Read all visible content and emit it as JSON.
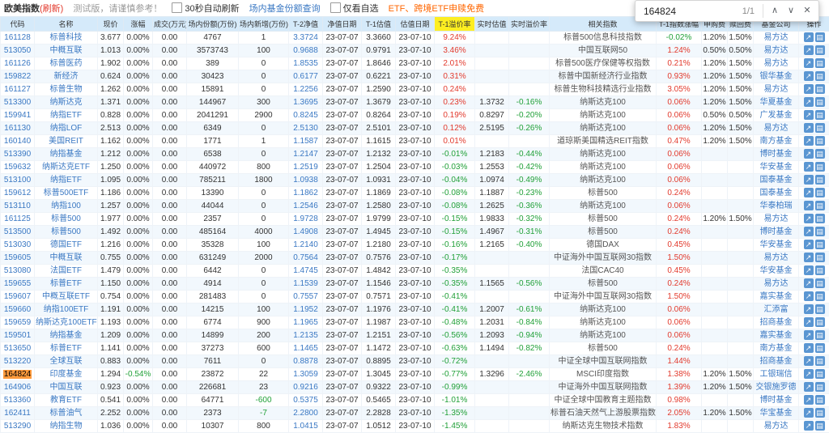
{
  "toolbar": {
    "title": "欧美指数",
    "refresh": "(刷新)",
    "notice": "测试版，请谨慎参考！",
    "auto_refresh_label": "30秒自动刷新",
    "share_query_link": "场内基金份额查询",
    "only_fav_label": "仅看自选",
    "promo": "ETF、跨境ETF申赎免费"
  },
  "find_bar": {
    "query": "164824",
    "matches": "1/1"
  },
  "icons": {
    "find_previous": "∧",
    "find_next": "∨",
    "find_close": "✕",
    "op_minute_chart": "↗",
    "op_kline_chart": "▤"
  },
  "colors": {
    "accent_blue": "#3a78c3",
    "positive_red": "#e23a2d",
    "negative_green": "#21a038",
    "header_bg": "#d5eafa",
    "premium_header_yellow": "#fdee21",
    "find_match_orange": "#ff9a3c"
  },
  "table": {
    "columns": [
      {
        "key": "code",
        "label": "代码",
        "cls": "link"
      },
      {
        "key": "name",
        "label": "名称",
        "cls": "link"
      },
      {
        "key": "price",
        "label": "现价",
        "cls": ""
      },
      {
        "key": "chg",
        "label": "涨幅",
        "cls": "sign"
      },
      {
        "key": "vol",
        "label": "成交(万元)",
        "cls": ""
      },
      {
        "key": "shares",
        "label": "场内份额(万份)",
        "cls": ""
      },
      {
        "key": "new",
        "label": "场内新增(万份)",
        "cls": "signplain"
      },
      {
        "key": "nav2",
        "label": "T-2净值",
        "cls": "link"
      },
      {
        "key": "nav_date",
        "label": "净值日期",
        "cls": ""
      },
      {
        "key": "est1",
        "label": "T-1估值",
        "cls": ""
      },
      {
        "key": "est_date",
        "label": "估值日期",
        "cls": ""
      },
      {
        "key": "prem1",
        "label": "T-1溢价率",
        "cls": "sign",
        "hl": true
      },
      {
        "key": "rt_est",
        "label": "实时估值",
        "cls": ""
      },
      {
        "key": "rt_prem",
        "label": "实时溢价率",
        "cls": "sign"
      },
      {
        "key": "index",
        "label": "相关指数",
        "cls": "idx"
      },
      {
        "key": "idx_chg",
        "label": "T-1指数涨幅",
        "cls": "sign"
      },
      {
        "key": "fee_buy",
        "label": "申购费",
        "cls": ""
      },
      {
        "key": "fee_sell",
        "label": "赎回费",
        "cls": ""
      },
      {
        "key": "company",
        "label": "基金公司",
        "cls": "link"
      },
      {
        "key": "ops",
        "label": "操作",
        "cls": "ops"
      }
    ],
    "rows": [
      [
        "161128",
        "标普科技",
        "3.677",
        "0.00%",
        "0.00",
        "4767",
        "1",
        "3.3724",
        "23-07-07",
        "3.3660",
        "23-07-10",
        "9.24%",
        "",
        "",
        "标普500信息科技指数",
        "-0.02%",
        "1.20%",
        "1.50%",
        "易方达"
      ],
      [
        "513050",
        "中概互联",
        "1.013",
        "0.00%",
        "0.00",
        "3573743",
        "100",
        "0.9688",
        "23-07-07",
        "0.9791",
        "23-07-10",
        "3.46%",
        "",
        "",
        "中国互联网50",
        "1.24%",
        "0.50%",
        "0.50%",
        "易方达"
      ],
      [
        "161126",
        "标普医药",
        "1.902",
        "0.00%",
        "0.00",
        "389",
        "0",
        "1.8535",
        "23-07-07",
        "1.8646",
        "23-07-10",
        "2.01%",
        "",
        "",
        "标普500医疗保健等权指数",
        "0.21%",
        "1.20%",
        "1.50%",
        "易方达"
      ],
      [
        "159822",
        "新经济",
        "0.624",
        "0.00%",
        "0.00",
        "30423",
        "0",
        "0.6177",
        "23-07-07",
        "0.6221",
        "23-07-10",
        "0.31%",
        "",
        "",
        "标普中国新经济行业指数",
        "0.93%",
        "1.20%",
        "1.50%",
        "银华基金"
      ],
      [
        "161127",
        "标普生物",
        "1.262",
        "0.00%",
        "0.00",
        "15891",
        "0",
        "1.2256",
        "23-07-07",
        "1.2590",
        "23-07-10",
        "0.24%",
        "",
        "",
        "标普生物科技精选行业指数",
        "3.05%",
        "1.20%",
        "1.50%",
        "易方达"
      ],
      [
        "513300",
        "纳斯达克",
        "1.371",
        "0.00%",
        "0.00",
        "144967",
        "300",
        "1.3695",
        "23-07-07",
        "1.3679",
        "23-07-10",
        "0.23%",
        "1.3732",
        "-0.16%",
        "纳斯达克100",
        "0.06%",
        "1.20%",
        "1.50%",
        "华夏基金"
      ],
      [
        "159941",
        "纳指ETF",
        "0.828",
        "0.00%",
        "0.00",
        "2041291",
        "2900",
        "0.8245",
        "23-07-07",
        "0.8264",
        "23-07-10",
        "0.19%",
        "0.8297",
        "-0.20%",
        "纳斯达克100",
        "0.06%",
        "0.50%",
        "0.50%",
        "广发基金"
      ],
      [
        "161130",
        "纳指LOF",
        "2.513",
        "0.00%",
        "0.00",
        "6349",
        "0",
        "2.5130",
        "23-07-07",
        "2.5101",
        "23-07-10",
        "0.12%",
        "2.5195",
        "-0.26%",
        "纳斯达克100",
        "0.06%",
        "1.20%",
        "1.50%",
        "易方达"
      ],
      [
        "160140",
        "美国REIT",
        "1.162",
        "0.00%",
        "0.00",
        "1771",
        "1",
        "1.1587",
        "23-07-07",
        "1.1615",
        "23-07-10",
        "0.01%",
        "",
        "",
        "道琼斯美国精选REIT指数",
        "0.47%",
        "1.20%",
        "1.50%",
        "南方基金"
      ],
      [
        "513390",
        "纳指基金",
        "1.212",
        "0.00%",
        "0.00",
        "6538",
        "0",
        "1.2147",
        "23-07-07",
        "1.2132",
        "23-07-10",
        "-0.01%",
        "1.2183",
        "-0.44%",
        "纳斯达克100",
        "0.06%",
        "",
        "",
        "博时基金"
      ],
      [
        "159632",
        "纳斯达克ETF",
        "1.250",
        "0.00%",
        "0.00",
        "440972",
        "800",
        "1.2519",
        "23-07-07",
        "1.2504",
        "23-07-10",
        "-0.03%",
        "1.2553",
        "-0.42%",
        "纳斯达克100",
        "0.06%",
        "",
        "",
        "华安基金"
      ],
      [
        "513100",
        "纳指ETF",
        "1.095",
        "0.00%",
        "0.00",
        "785211",
        "1800",
        "1.0938",
        "23-07-07",
        "1.0931",
        "23-07-10",
        "-0.04%",
        "1.0974",
        "-0.49%",
        "纳斯达克100",
        "0.06%",
        "",
        "",
        "国泰基金"
      ],
      [
        "159612",
        "标普500ETF",
        "1.186",
        "0.00%",
        "0.00",
        "13390",
        "0",
        "1.1862",
        "23-07-07",
        "1.1869",
        "23-07-10",
        "-0.08%",
        "1.1887",
        "-0.23%",
        "标普500",
        "0.24%",
        "",
        "",
        "国泰基金"
      ],
      [
        "513110",
        "纳指100",
        "1.257",
        "0.00%",
        "0.00",
        "44044",
        "0",
        "1.2546",
        "23-07-07",
        "1.2580",
        "23-07-10",
        "-0.08%",
        "1.2625",
        "-0.36%",
        "纳斯达克100",
        "0.06%",
        "",
        "",
        "华泰柏瑞"
      ],
      [
        "161125",
        "标普500",
        "1.977",
        "0.00%",
        "0.00",
        "2357",
        "0",
        "1.9728",
        "23-07-07",
        "1.9799",
        "23-07-10",
        "-0.15%",
        "1.9833",
        "-0.32%",
        "标普500",
        "0.24%",
        "1.20%",
        "1.50%",
        "易方达"
      ],
      [
        "513500",
        "标普500",
        "1.492",
        "0.00%",
        "0.00",
        "485164",
        "4000",
        "1.4908",
        "23-07-07",
        "1.4945",
        "23-07-10",
        "-0.15%",
        "1.4967",
        "-0.31%",
        "标普500",
        "0.24%",
        "",
        "",
        "博时基金"
      ],
      [
        "513030",
        "德国ETF",
        "1.216",
        "0.00%",
        "0.00",
        "35328",
        "100",
        "1.2140",
        "23-07-07",
        "1.2180",
        "23-07-10",
        "-0.16%",
        "1.2165",
        "-0.40%",
        "德国DAX",
        "0.45%",
        "",
        "",
        "华安基金"
      ],
      [
        "159605",
        "中概互联",
        "0.755",
        "0.00%",
        "0.00",
        "631249",
        "2000",
        "0.7564",
        "23-07-07",
        "0.7576",
        "23-07-10",
        "-0.17%",
        "",
        "",
        "中证海外中国互联网30指数",
        "1.50%",
        "",
        "",
        "易方达"
      ],
      [
        "513080",
        "法国ETF",
        "1.479",
        "0.00%",
        "0.00",
        "6442",
        "0",
        "1.4745",
        "23-07-07",
        "1.4842",
        "23-07-10",
        "-0.35%",
        "",
        "",
        "法国CAC40",
        "0.45%",
        "",
        "",
        "华安基金"
      ],
      [
        "159655",
        "标普ETF",
        "1.150",
        "0.00%",
        "0.00",
        "4914",
        "0",
        "1.1539",
        "23-07-07",
        "1.1546",
        "23-07-10",
        "-0.35%",
        "1.1565",
        "-0.56%",
        "标普500",
        "0.24%",
        "",
        "",
        "易方达"
      ],
      [
        "159607",
        "中概互联ETF",
        "0.754",
        "0.00%",
        "0.00",
        "281483",
        "0",
        "0.7557",
        "23-07-07",
        "0.7571",
        "23-07-10",
        "-0.41%",
        "",
        "",
        "中证海外中国互联网30指数",
        "1.50%",
        "",
        "",
        "嘉实基金"
      ],
      [
        "159660",
        "纳指100ETF",
        "1.191",
        "0.00%",
        "0.00",
        "14215",
        "100",
        "1.1952",
        "23-07-07",
        "1.1976",
        "23-07-10",
        "-0.41%",
        "1.2007",
        "-0.61%",
        "纳斯达克100",
        "0.06%",
        "",
        "",
        "汇添富"
      ],
      [
        "159659",
        "纳斯达克100ETF",
        "1.193",
        "0.00%",
        "0.00",
        "6774",
        "900",
        "1.1965",
        "23-07-07",
        "1.1987",
        "23-07-10",
        "-0.48%",
        "1.2031",
        "-0.84%",
        "纳斯达克100",
        "0.06%",
        "",
        "",
        "招商基金"
      ],
      [
        "159501",
        "纳指基金",
        "1.209",
        "0.00%",
        "0.00",
        "14899",
        "200",
        "1.2135",
        "23-07-07",
        "1.2151",
        "23-07-10",
        "-0.56%",
        "1.2093",
        "-0.94%",
        "纳斯达克100",
        "0.06%",
        "",
        "",
        "嘉实基金"
      ],
      [
        "513650",
        "标普ETF",
        "1.141",
        "0.00%",
        "0.00",
        "37273",
        "600",
        "1.1465",
        "23-07-07",
        "1.1472",
        "23-07-10",
        "-0.63%",
        "1.1494",
        "-0.82%",
        "标普500",
        "0.24%",
        "",
        "",
        "南方基金"
      ],
      [
        "513220",
        "全球互联",
        "0.883",
        "0.00%",
        "0.00",
        "7611",
        "0",
        "0.8878",
        "23-07-07",
        "0.8895",
        "23-07-10",
        "-0.72%",
        "",
        "",
        "中证全球中国互联网指数",
        "1.44%",
        "",
        "",
        "招商基金"
      ],
      [
        "164824",
        "印度基金",
        "1.294",
        "-0.54%",
        "0.00",
        "23872",
        "22",
        "1.3059",
        "23-07-07",
        "1.3045",
        "23-07-10",
        "-0.77%",
        "1.3296",
        "-2.46%",
        "MSCI印度指数",
        "1.38%",
        "1.20%",
        "1.50%",
        "工银瑞信"
      ],
      [
        "164906",
        "中国互联",
        "0.923",
        "0.00%",
        "0.00",
        "226681",
        "23",
        "0.9216",
        "23-07-07",
        "0.9322",
        "23-07-10",
        "-0.99%",
        "",
        "",
        "中证海外中国互联网指数",
        "1.39%",
        "1.20%",
        "1.50%",
        "交银施罗德"
      ],
      [
        "513360",
        "教育ETF",
        "0.541",
        "0.00%",
        "0.00",
        "64771",
        "-600",
        "0.5375",
        "23-07-07",
        "0.5465",
        "23-07-10",
        "-1.01%",
        "",
        "",
        "中证全球中国教育主题指数",
        "0.98%",
        "",
        "",
        "博时基金"
      ],
      [
        "162411",
        "标普油气",
        "2.252",
        "0.00%",
        "0.00",
        "2373",
        "-7",
        "2.2800",
        "23-07-07",
        "2.2828",
        "23-07-10",
        "-1.35%",
        "",
        "",
        "标普石油天然气上游股票指数",
        "2.05%",
        "1.20%",
        "1.50%",
        "华宝基金"
      ],
      [
        "513290",
        "纳指生物",
        "1.036",
        "0.00%",
        "0.00",
        "10307",
        "800",
        "1.0415",
        "23-07-07",
        "1.0512",
        "23-07-10",
        "-1.45%",
        "",
        "",
        "纳斯达克生物技术指数",
        "1.83%",
        "",
        "",
        "易方达"
      ]
    ]
  }
}
